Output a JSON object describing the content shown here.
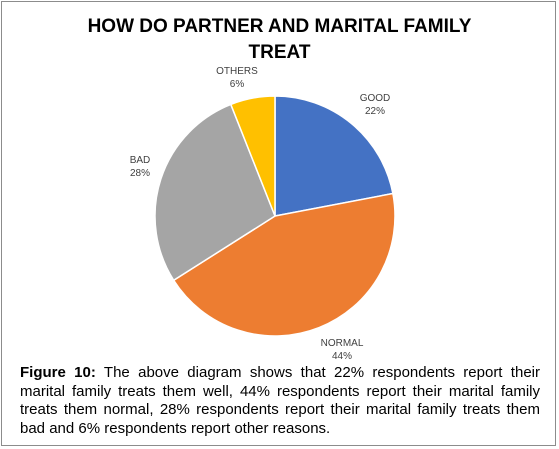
{
  "chart_data": {
    "type": "pie",
    "title_lines": [
      "HOW DO PARTNER AND MARITAL FAMILY",
      "TREAT"
    ],
    "slices": [
      {
        "label": "GOOD",
        "value": 22,
        "color": "#4472C4"
      },
      {
        "label": "NORMAL",
        "value": 44,
        "color": "#ED7D31"
      },
      {
        "label": "BAD",
        "value": 28,
        "color": "#A5A5A5"
      },
      {
        "label": "OTHERS",
        "value": 6,
        "color": "#FFC000"
      }
    ],
    "value_suffix": "%",
    "start_angle_deg": 0,
    "direction": "clockwise"
  },
  "caption": {
    "label": "Figure 10:",
    "text": " The above diagram shows that 22% respondents report their marital family treats them well, 44% respondents report their marital family treats them normal, 28% respondents report their marital family treats them bad and 6% respondents report other reasons."
  }
}
